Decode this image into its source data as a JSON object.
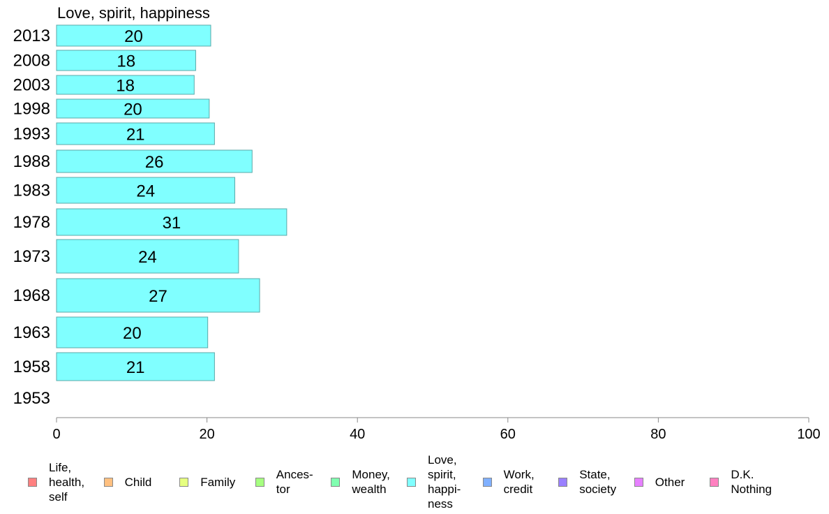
{
  "chart_data": {
    "type": "bar",
    "orientation": "horizontal",
    "title": "Love, spirit, happiness",
    "categories": [
      "2013",
      "2008",
      "2003",
      "1998",
      "1993",
      "1988",
      "1983",
      "1978",
      "1973",
      "1968",
      "1963",
      "1958",
      "1953"
    ],
    "values": [
      20.5,
      18.5,
      18.3,
      20.3,
      21,
      26,
      23.7,
      30.6,
      24.2,
      27,
      20.1,
      21,
      null
    ],
    "data_labels": [
      "20",
      "18",
      "18",
      "20",
      "21",
      "26",
      "24",
      "31",
      "24",
      "27",
      "20",
      "21",
      ""
    ],
    "xlim": [
      0,
      100
    ],
    "xticks": [
      "0",
      "20",
      "40",
      "60",
      "80",
      "100"
    ],
    "bar_color": "#80ffff",
    "bar_border": "#5aa8a8",
    "axis_color": "#888888",
    "grid": false
  },
  "legend": {
    "placement": "bottom",
    "items": [
      {
        "label": "Life,\nhealth,\nself",
        "color": "#ff8080"
      },
      {
        "label": "Child",
        "color": "#ffc080"
      },
      {
        "label": "Family",
        "color": "#e6ff80"
      },
      {
        "label": "Ances-\ntor",
        "color": "#a6ff80"
      },
      {
        "label": "Money,\nwealth",
        "color": "#80ffb0"
      },
      {
        "label": "Love,\nspirit,\nhappi-\nness",
        "color": "#80ffff"
      },
      {
        "label": "Work,\ncredit",
        "color": "#80b0ff"
      },
      {
        "label": "State,\nsociety",
        "color": "#9a80ff"
      },
      {
        "label": "Other",
        "color": "#e680ff"
      },
      {
        "label": "D.K.\nNothing",
        "color": "#ff80c0"
      }
    ]
  }
}
